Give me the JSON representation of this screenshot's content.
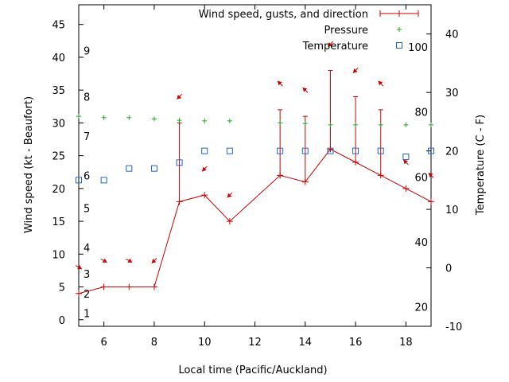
{
  "chart_data": {
    "type": "line",
    "xlabel": "Local time (Pacific/Auckland)",
    "ylabel_left": "Wind speed (kt - Beaufort)",
    "ylabel_right": "Temperature (C - F)",
    "xlim": [
      5,
      19
    ],
    "ylim_left": [
      -1,
      48
    ],
    "ylim_right": [
      -10,
      45
    ],
    "x_ticks": [
      6,
      8,
      10,
      12,
      14,
      16,
      18
    ],
    "y_left_ticks": [
      0,
      5,
      10,
      15,
      20,
      25,
      30,
      35,
      40,
      45
    ],
    "y_right_ticks": [
      -10,
      0,
      10,
      20,
      30,
      40
    ],
    "beaufort": [
      {
        "label": "1",
        "kt": 1
      },
      {
        "label": "2",
        "kt": 4
      },
      {
        "label": "3",
        "kt": 7
      },
      {
        "label": "4",
        "kt": 11
      },
      {
        "label": "5",
        "kt": 17
      },
      {
        "label": "6",
        "kt": 22
      },
      {
        "label": "7",
        "kt": 28
      },
      {
        "label": "8",
        "kt": 34
      },
      {
        "label": "9",
        "kt": 41
      }
    ],
    "fahrenheit": [
      {
        "label": "20",
        "f": 20
      },
      {
        "label": "40",
        "f": 40
      },
      {
        "label": "60",
        "f": 60
      },
      {
        "label": "80",
        "f": 80
      },
      {
        "label": "100",
        "f": 100
      }
    ],
    "legend": {
      "position": "top-right",
      "entries": [
        "Wind speed, gusts, and direction",
        "Pressure",
        "Temperature"
      ]
    },
    "colors": {
      "wind": "#cc0000",
      "pressure": "#22aa22",
      "temperature": "#2266cc",
      "axis": "#000000"
    },
    "series": [
      {
        "name": "Wind speed, gusts, and direction",
        "x": [
          5,
          6,
          7,
          8,
          9,
          10,
          11,
          13,
          14,
          15,
          16,
          17,
          18,
          19
        ],
        "speed": [
          4,
          5,
          5,
          5,
          18,
          19,
          15,
          22,
          21,
          26,
          24,
          22,
          20,
          18
        ],
        "gust": [
          4,
          5,
          5,
          5,
          30,
          19,
          15,
          32,
          31,
          38,
          34,
          32,
          20,
          18
        ],
        "direction_deg": [
          120,
          120,
          120,
          225,
          225,
          225,
          225,
          315,
          315,
          225,
          225,
          315,
          315,
          315
        ],
        "arrow_kt": [
          8,
          9,
          9,
          9,
          34,
          23,
          19,
          36,
          35,
          42,
          38,
          36,
          24,
          22
        ]
      },
      {
        "name": "Pressure",
        "x": [
          5,
          6,
          7,
          8,
          9,
          10,
          11,
          13,
          14,
          15,
          16,
          17,
          18,
          19
        ],
        "values": [
          31,
          30.8,
          30.8,
          30.6,
          30.4,
          30.3,
          30.3,
          30.0,
          29.9,
          29.7,
          29.7,
          29.7,
          29.7,
          29.7
        ]
      },
      {
        "name": "Temperature",
        "x": [
          5,
          6,
          7,
          8,
          9,
          10,
          11,
          13,
          14,
          15,
          16,
          17,
          18,
          19
        ],
        "values": [
          15,
          15,
          17,
          17,
          18,
          20,
          20,
          20,
          20,
          20,
          20,
          20,
          19,
          20
        ]
      }
    ]
  }
}
